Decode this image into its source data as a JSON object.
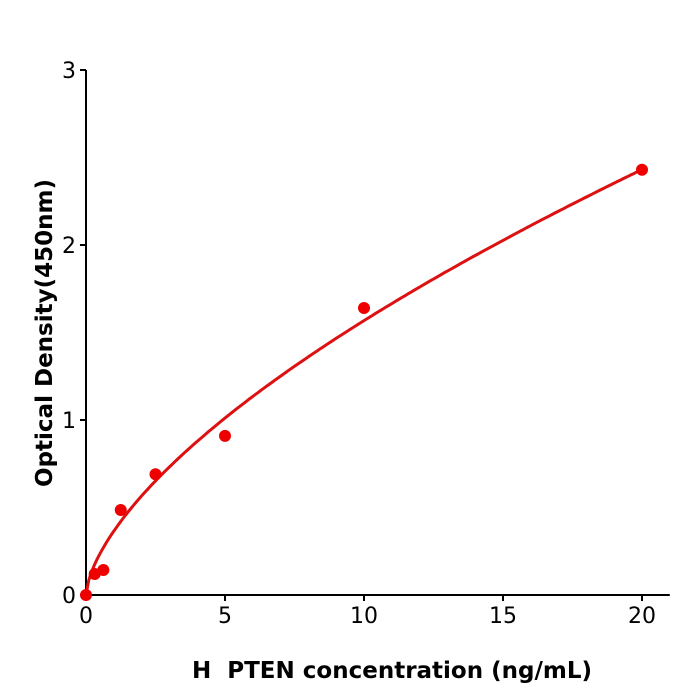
{
  "chart_data": {
    "type": "scatter",
    "title": "",
    "xlabel": "H  PTEN concentration (ng/mL)",
    "ylabel": "Optical Density(450nm)",
    "xlim": [
      0,
      21
    ],
    "ylim": [
      0,
      3
    ],
    "xticks": [
      0,
      5,
      10,
      15,
      20
    ],
    "yticks": [
      0,
      1,
      2,
      3
    ],
    "grid": false,
    "series": [
      {
        "x": [
          0,
          0.3125,
          0.625,
          1.25,
          2.5,
          5,
          10,
          20
        ],
        "y": [
          0.0,
          0.12,
          0.143,
          0.486,
          0.69,
          0.909,
          1.64,
          2.43
        ],
        "color": "#ee0000",
        "marker": "circle"
      }
    ],
    "fit": {
      "type": "power",
      "a": 0.365,
      "b": 0.633,
      "color": "#dd1111"
    }
  }
}
